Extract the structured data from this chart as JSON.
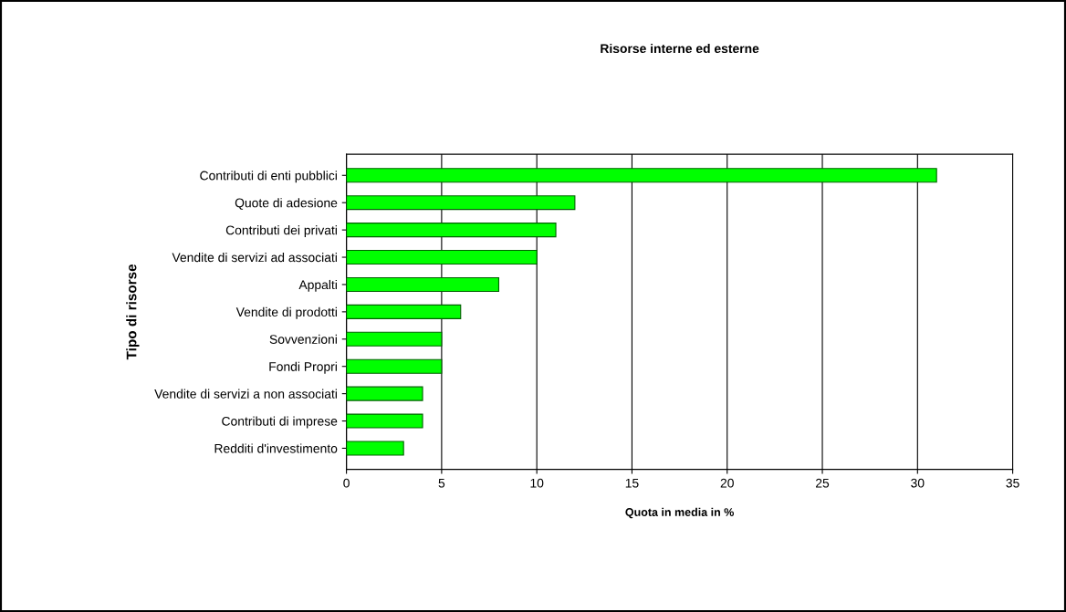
{
  "chart_data": {
    "type": "bar",
    "orientation": "horizontal",
    "title": "Risorse interne ed esterne",
    "xlabel": "Quota in media in %",
    "ylabel": "Tipo di risorse",
    "categories": [
      "Contributi di enti pubblici",
      "Quote di adesione",
      "Contributi dei privati",
      "Vendite di servizi ad associati",
      "Appalti",
      "Vendite di prodotti",
      "Sovvenzioni",
      "Fondi Propri",
      "Vendite di servizi a non associati",
      "Contributi di imprese",
      "Redditi d'investimento"
    ],
    "values": [
      31,
      12,
      11,
      10,
      8,
      6,
      5,
      5,
      4,
      4,
      3
    ],
    "color": "#00ff00",
    "xlim": [
      0,
      35
    ],
    "xticks": [
      0,
      5,
      10,
      15,
      20,
      25,
      30,
      35
    ],
    "grid": "x"
  }
}
